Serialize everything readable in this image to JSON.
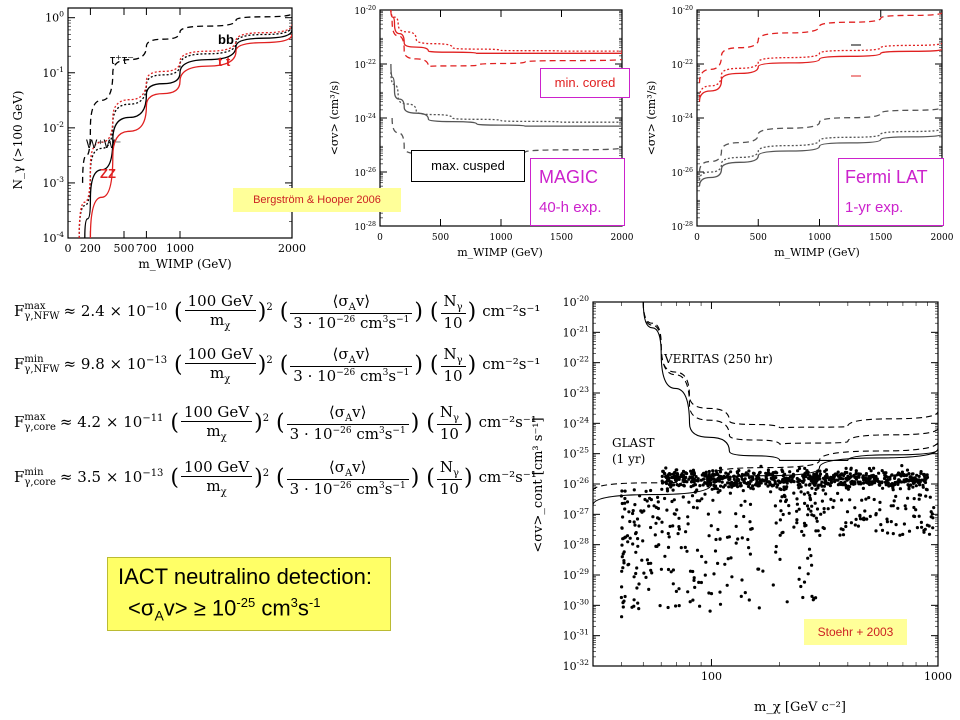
{
  "chart_data": [
    {
      "type": "line",
      "panel": "gamma-yield",
      "xlabel": "m_WIMP (GeV)",
      "ylabel": "N_γ (>100 GeV)",
      "xlim": [
        0,
        2000
      ],
      "ylim": [
        0.0001,
        1.5
      ],
      "yscale": "log",
      "xticks": [
        "0",
        "200",
        "500",
        "700",
        "1000",
        "2000"
      ],
      "xtick_values": [
        0,
        200,
        500,
        700,
        1000,
        2000
      ],
      "yticks": [
        "10^-4",
        "10^-3",
        "10^-2",
        "10^-1",
        "10^0"
      ],
      "series": [
        {
          "name": "τ⁺τ⁻",
          "style": "dashed",
          "color": "#000000",
          "x": [
            130,
            200,
            400,
            700,
            1000,
            1500,
            2000
          ],
          "y": [
            0.001,
            0.01,
            0.1,
            0.3,
            0.55,
            0.9,
            1.2
          ]
        },
        {
          "name": "bb",
          "style": "solid",
          "color": "#000000",
          "x": [
            150,
            200,
            400,
            700,
            1000,
            1500,
            2000
          ],
          "y": [
            0.0001,
            0.0005,
            0.006,
            0.04,
            0.1,
            0.3,
            0.6
          ]
        },
        {
          "name": "t t",
          "style": "solid",
          "color": "#e02020",
          "x": [
            200,
            400,
            700,
            1000,
            1500,
            2000
          ],
          "y": [
            0.0001,
            0.003,
            0.025,
            0.07,
            0.25,
            0.5
          ]
        },
        {
          "name": "W⁺W⁻",
          "style": "dotted",
          "color": "#000000",
          "x": [
            100,
            200,
            400,
            700,
            1000,
            1500,
            2000
          ],
          "y": [
            0.0001,
            0.0015,
            0.012,
            0.06,
            0.14,
            0.35,
            0.7
          ]
        },
        {
          "name": "ZZ",
          "style": "dotted",
          "color": "#e02020",
          "x": [
            100,
            200,
            400,
            700,
            1000,
            1500,
            2000
          ],
          "y": [
            0.0001,
            0.002,
            0.015,
            0.07,
            0.16,
            0.38,
            0.75
          ]
        }
      ],
      "curve_labels": [
        "bb",
        "t t",
        "τ⁺τ⁻",
        "W⁺W⁻",
        "ZZ"
      ],
      "annotation": "Bergström & Hooper 2006"
    },
    {
      "type": "line",
      "panel": "magic-sensitivity",
      "xlabel": "m_WIMP (GeV)",
      "ylabel": "<σv> (cm³/s)",
      "xlim": [
        0,
        2000
      ],
      "ylim": [
        1e-28,
        1e-20
      ],
      "yscale": "log",
      "xticks": [
        "0",
        "500",
        "1000",
        "1500",
        "2000"
      ],
      "yticks": [
        "10^-28",
        "10^-26",
        "10^-24",
        "10^-22",
        "10^-20"
      ],
      "series": [
        {
          "style": "solid",
          "color": "#e02020",
          "x": [
            90,
            120,
            200,
            400,
            800,
            1200,
            2000
          ],
          "y": [
            1e-20,
            3e-21,
            6e-22,
            3e-22,
            2.5e-22,
            2.5e-22,
            2.5e-22
          ]
        },
        {
          "style": "dotted",
          "color": "#e02020",
          "x": [
            90,
            150,
            300,
            600,
            1000,
            1500,
            2000
          ],
          "y": [
            1e-20,
            3e-21,
            8e-22,
            4e-22,
            3.2e-22,
            3e-22,
            3e-22
          ]
        },
        {
          "style": "dashed",
          "color": "#e02020",
          "x": [
            100,
            200,
            400,
            800,
            1200,
            2000
          ],
          "y": [
            4e-21,
            3e-22,
            8e-23,
            9e-23,
            1.2e-22,
            1.5e-22
          ]
        },
        {
          "style": "solid",
          "color": "#555555",
          "x": [
            90,
            120,
            200,
            400,
            800,
            1200,
            2000
          ],
          "y": [
            1e-22,
            1e-23,
            2.5e-24,
            9e-25,
            6e-25,
            5e-25,
            5e-25
          ]
        },
        {
          "style": "dotted",
          "color": "#555555",
          "x": [
            90,
            150,
            300,
            600,
            1000,
            1500,
            2000
          ],
          "y": [
            5e-23,
            6e-24,
            1.8e-24,
            1e-24,
            8e-25,
            7e-25,
            7e-25
          ]
        },
        {
          "style": "dashed",
          "color": "#555555",
          "x": [
            100,
            200,
            400,
            800,
            1200,
            2000
          ],
          "y": [
            1e-24,
            8e-26,
            3e-26,
            4e-26,
            5.5e-26,
            8e-26
          ]
        }
      ],
      "labels": {
        "min_cored": "min. cored",
        "max_cusped": "max. cusped",
        "instrument": "MAGIC",
        "exposure": "40-h exp."
      }
    },
    {
      "type": "line",
      "panel": "fermi-sensitivity",
      "xlabel": "m_WIMP (GeV)",
      "ylabel": "<σv> (cm³/s)",
      "xlim": [
        0,
        2000
      ],
      "ylim": [
        1e-28,
        1e-20
      ],
      "yscale": "log",
      "xticks": [
        "0",
        "500",
        "1000",
        "1500",
        "2000"
      ],
      "yticks": [
        "10^-28",
        "10^-26",
        "10^-24",
        "10^-22",
        "10^-20"
      ],
      "series": [
        {
          "style": "dashed",
          "color": "#e02020",
          "x": [
            20,
            200,
            500,
            1000,
            1500,
            2000
          ],
          "y": [
            2e-23,
            2e-22,
            8e-22,
            2.5e-21,
            5e-21,
            8e-21
          ]
        },
        {
          "style": "dotted",
          "color": "#e02020",
          "x": [
            20,
            200,
            500,
            1000,
            1500,
            2000
          ],
          "y": [
            6e-24,
            4e-23,
            1.2e-22,
            2.5e-22,
            4e-22,
            6e-22
          ]
        },
        {
          "style": "solid",
          "color": "#e02020",
          "x": [
            20,
            200,
            500,
            1000,
            1500,
            2000
          ],
          "y": [
            4e-24,
            2.5e-23,
            8e-23,
            1.5e-22,
            2.5e-22,
            3.5e-22
          ]
        },
        {
          "style": "dashed",
          "color": "#555555",
          "x": [
            20,
            200,
            500,
            1000,
            1500,
            2000
          ],
          "y": [
            1e-26,
            6e-26,
            2.5e-25,
            7e-25,
            1.5e-24,
            2.5e-24
          ]
        },
        {
          "style": "dotted",
          "color": "#555555",
          "x": [
            20,
            200,
            500,
            1000,
            1500,
            2000
          ],
          "y": [
            5e-27,
            2e-26,
            6e-26,
            1.5e-25,
            2.5e-25,
            4e-25
          ]
        },
        {
          "style": "solid",
          "color": "#555555",
          "x": [
            20,
            200,
            500,
            1000,
            1500,
            2000
          ],
          "y": [
            3e-27,
            1.3e-26,
            4e-26,
            9e-26,
            1.6e-25,
            2.5e-25
          ]
        }
      ],
      "labels": {
        "instrument": "Fermi LAT",
        "exposure": "1-yr exp."
      }
    },
    {
      "type": "scatter",
      "panel": "stoehr-veritas-glast",
      "xlabel": "m_χ [GeV c⁻²]",
      "ylabel": "<σv>_cont [cm³ s⁻¹]",
      "xscale": "log",
      "yscale": "log",
      "xlim": [
        30,
        1000
      ],
      "ylim": [
        1e-32,
        1e-20
      ],
      "xticks": [
        "100",
        "1000"
      ],
      "yticks": [
        "10^-32",
        "10^-31",
        "10^-30",
        "10^-29",
        "10^-28",
        "10^-27",
        "10^-26",
        "10^-25",
        "10^-24",
        "10^-23",
        "10^-22",
        "10^-21",
        "10^-20"
      ],
      "series": [
        {
          "name": "VERITAS (250 hr)",
          "style": "solid",
          "x": [
            50,
            60,
            80,
            120,
            200,
            400,
            1000
          ],
          "y": [
            1e-20,
            2e-22,
            1e-24,
            1.2e-25,
            6e-26,
            6e-26,
            1.4e-25
          ]
        },
        {
          "style": "dashed",
          "x": [
            50,
            60,
            80,
            120,
            200,
            400,
            1000
          ],
          "y": [
            1e-20,
            4e-22,
            4e-24,
            4e-25,
            2e-25,
            2.5e-25,
            7e-25
          ]
        },
        {
          "style": "dashed",
          "x": [
            50,
            60,
            80,
            120,
            200,
            400,
            1000
          ],
          "y": [
            1e-20,
            3e-22,
            8e-24,
            1.2e-24,
            7e-25,
            8e-25,
            2.5e-24
          ]
        },
        {
          "name": "GLAST (1 yr)",
          "style": "solid",
          "x": [
            30,
            100,
            300,
            1000
          ],
          "y": [
            2e-27,
            1e-26,
            3.5e-26,
            1.5e-25
          ]
        },
        {
          "style": "dashed",
          "x": [
            30,
            100,
            300,
            1000
          ],
          "y": [
            6e-27,
            2e-26,
            6e-26,
            2.5e-25
          ]
        }
      ],
      "labels": {
        "veritas": "VERITAS (250 hr)",
        "glast_1": "GLAST",
        "glast_2": "(1 yr)"
      },
      "annotation": "Stoehr + 2003"
    }
  ],
  "formulas": [
    {
      "sub_sup": [
        "max",
        "γ,NFW"
      ],
      "coef": "2.4",
      "exp": "−10"
    },
    {
      "sub_sup": [
        "min",
        "γ,NFW"
      ],
      "coef": "9.8",
      "exp": "−13"
    },
    {
      "sub_sup": [
        "max",
        "γ,core"
      ],
      "coef": "4.2",
      "exp": "−11"
    },
    {
      "sub_sup": [
        "min",
        "γ,core"
      ],
      "coef": "3.5",
      "exp": "−13"
    }
  ],
  "formula_common": {
    "mass_num": "100 GeV",
    "mass_den": "m",
    "xsec_num": "⟨σ",
    "xsec_den": "3 · 10",
    "ng_num": "N",
    "ng_den": "10",
    "units": "cm⁻²s⁻¹"
  },
  "conclusion": {
    "line1": "IACT neutralino detection:",
    "line2_pre": "<σ",
    "line2_sub": "A",
    "line2_mid": "v>  ≥  10",
    "line2_exp": "-25",
    "line2_unit": " cm",
    "line2_unit_sup1": "3",
    "line2_unit_s": "s",
    "line2_unit_sup2": "-1"
  },
  "colors": {
    "red": "#e02020",
    "magenta_box": "#cc22cc",
    "yellow_box": "#ffff66",
    "annotation_box": "#ffff99",
    "annotation_text": "#cc2222"
  }
}
